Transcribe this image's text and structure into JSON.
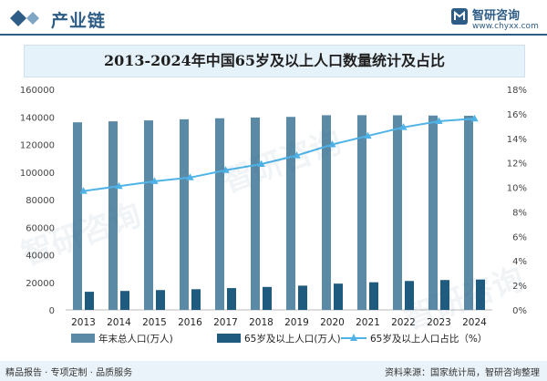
{
  "header": {
    "section_title": "产业链",
    "brand_name": "智研咨询",
    "brand_url": "www.chyxx.com"
  },
  "footer": {
    "left": "精品报告 · 专项定制 · 品质服务",
    "right": "资料来源：国家统计局，智研咨询整理"
  },
  "chart_data": {
    "type": "bar",
    "title": "2013-2024年中国65岁及以上人口数量统计及占比",
    "categories": [
      "2013",
      "2014",
      "2015",
      "2016",
      "2017",
      "2018",
      "2019",
      "2020",
      "2021",
      "2022",
      "2023",
      "2024"
    ],
    "series": [
      {
        "name": "年末总人口(万人)",
        "type": "bar",
        "axis": "left",
        "color": "#5b8aa6",
        "values": [
          136072,
          136782,
          137462,
          138271,
          139008,
          139538,
          140005,
          141212,
          141260,
          141175,
          140967,
          140828
        ]
      },
      {
        "name": "65岁及以上人口(万人)",
        "type": "bar",
        "axis": "left",
        "color": "#1f5b7e",
        "values": [
          13161,
          13755,
          14386,
          15003,
          15831,
          16658,
          17603,
          19064,
          20056,
          20978,
          21676,
          22023
        ]
      },
      {
        "name": "65岁及以上人口占比（%）",
        "type": "line",
        "axis": "right",
        "color": "#4fb3e8",
        "values": [
          9.7,
          10.1,
          10.5,
          10.8,
          11.4,
          11.9,
          12.6,
          13.5,
          14.2,
          14.9,
          15.4,
          15.6
        ]
      }
    ],
    "y_left": {
      "min": 0,
      "max": 160000,
      "ticks": [
        "0",
        "20000",
        "40000",
        "60000",
        "80000",
        "100000",
        "120000",
        "140000",
        "160000"
      ]
    },
    "y_right": {
      "min": 0,
      "max": 18,
      "ticks": [
        "0%",
        "2%",
        "4%",
        "6%",
        "8%",
        "10%",
        "12%",
        "14%",
        "16%",
        "18%"
      ]
    },
    "grid": false,
    "legend": "bottom"
  }
}
